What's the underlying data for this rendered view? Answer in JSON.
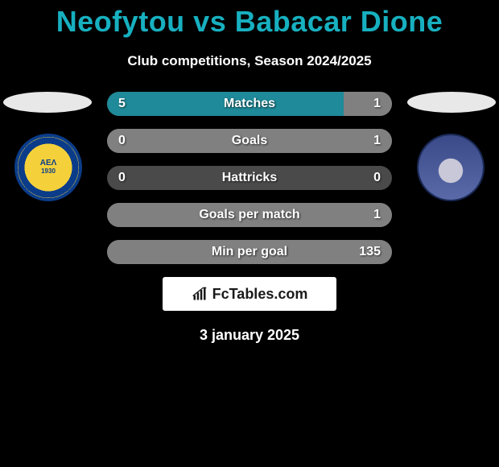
{
  "title": {
    "text": "Neofytou vs Babacar Dione",
    "color": "#17b0c0"
  },
  "subtitle": "Club competitions, Season 2024/2025",
  "left_team": {
    "abbrev": "ΑΕΛ",
    "year": "1930"
  },
  "bars": {
    "track_color": "#4a4a4a",
    "left_fill_color": "#1f8a99",
    "right_fill_color": "#808080",
    "rows": [
      {
        "label": "Matches",
        "left_val": "5",
        "right_val": "1",
        "left_pct": 83,
        "right_pct": 17
      },
      {
        "label": "Goals",
        "left_val": "0",
        "right_val": "1",
        "left_pct": 0,
        "right_pct": 100
      },
      {
        "label": "Hattricks",
        "left_val": "0",
        "right_val": "0",
        "left_pct": 0,
        "right_pct": 0
      },
      {
        "label": "Goals per match",
        "left_val": "",
        "right_val": "1",
        "left_pct": 0,
        "right_pct": 100
      },
      {
        "label": "Min per goal",
        "left_val": "",
        "right_val": "135",
        "left_pct": 0,
        "right_pct": 100
      }
    ]
  },
  "branding": "FcTables.com",
  "date": "3 january 2025"
}
